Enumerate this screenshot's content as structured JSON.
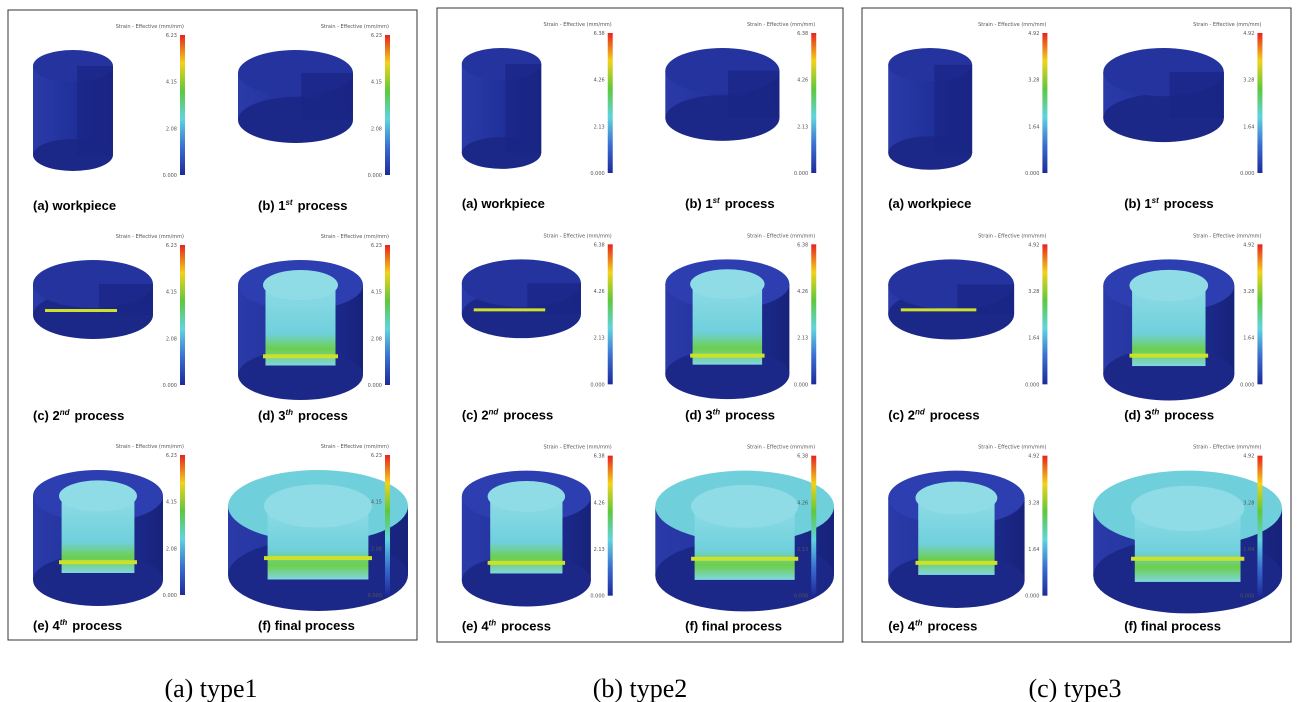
{
  "panels": [
    {
      "caption": "(a)  type1",
      "colorbar_title": "Strain - Effective (mm/mm)",
      "colorbar_ticks": [
        "6.23",
        "4.15",
        "2.08",
        "0.000"
      ],
      "subplots": [
        {
          "label": "(a) workpiece"
        },
        {
          "label": "(b) 1",
          "sup": "st",
          "suffix": "process"
        },
        {
          "label": "(c) 2",
          "sup": "nd",
          "suffix": "process"
        },
        {
          "label": "(d) 3",
          "sup": "th",
          "suffix": "process"
        },
        {
          "label": "(e) 4",
          "sup": "th",
          "suffix": "process"
        },
        {
          "label": "(f) final process"
        }
      ]
    },
    {
      "caption": "(b)  type2",
      "colorbar_title": "Strain - Effective (mm/mm)",
      "colorbar_ticks": [
        "6.38",
        "4.26",
        "2.13",
        "0.000"
      ],
      "subplots": [
        {
          "label": "(a) workpiece"
        },
        {
          "label": "(b) 1",
          "sup": "st",
          "suffix": "process"
        },
        {
          "label": "(c) 2",
          "sup": "nd",
          "suffix": "process"
        },
        {
          "label": "(d) 3",
          "sup": "th",
          "suffix": "process"
        },
        {
          "label": "(e) 4",
          "sup": "th",
          "suffix": "process"
        },
        {
          "label": "(f) final process"
        }
      ]
    },
    {
      "caption": "(c)  type3",
      "colorbar_title": "Strain - Effective (mm/mm)",
      "colorbar_ticks": [
        "4.92",
        "3.28",
        "1.64",
        "0.000"
      ],
      "subplots": [
        {
          "label": "(a) workpiece"
        },
        {
          "label": "(b) 1",
          "sup": "st",
          "suffix": "process"
        },
        {
          "label": "(c) 2",
          "sup": "nd",
          "suffix": "process"
        },
        {
          "label": "(d) 3",
          "sup": "th",
          "suffix": "process"
        },
        {
          "label": "(e) 4",
          "sup": "th",
          "suffix": "process"
        },
        {
          "label": "(f) final process"
        }
      ]
    }
  ]
}
